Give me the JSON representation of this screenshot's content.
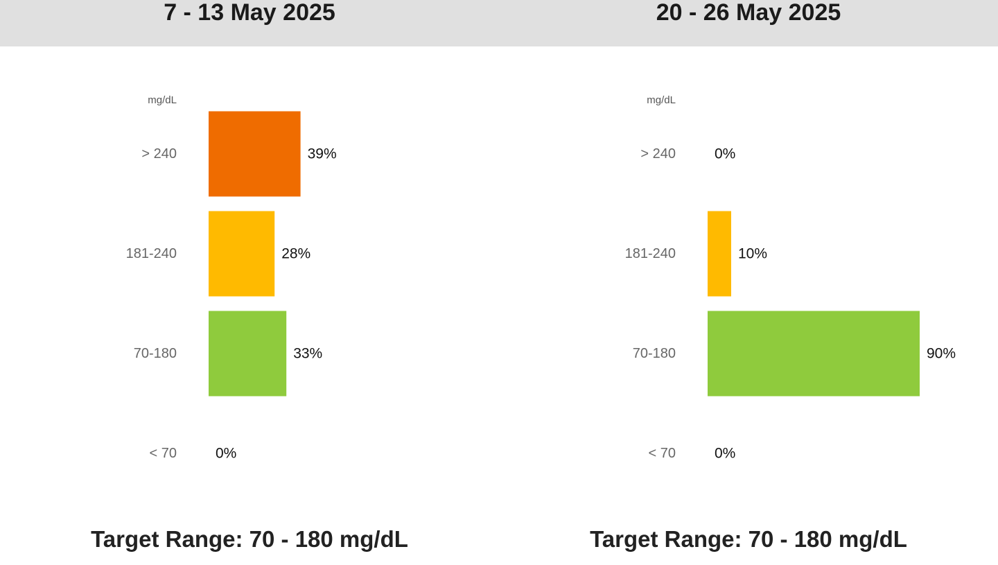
{
  "chart_data": [
    {
      "type": "bar",
      "orientation": "horizontal",
      "title": "7 - 13 May 2025",
      "unit_label": "mg/dL",
      "categories": [
        "> 240",
        "181-240",
        "70-180",
        "< 70"
      ],
      "values": [
        39,
        28,
        33,
        0
      ],
      "value_labels": [
        "39%",
        "28%",
        "33%",
        "0%"
      ],
      "colors": [
        "#ef6c00",
        "#ffba00",
        "#8fcb3d",
        "#d32f2f"
      ],
      "xlim": [
        0,
        100
      ],
      "grid": false,
      "footer": "Target Range: 70 - 180 mg/dL"
    },
    {
      "type": "bar",
      "orientation": "horizontal",
      "title": "20 - 26 May 2025",
      "unit_label": "mg/dL",
      "categories": [
        "> 240",
        "181-240",
        "70-180",
        "< 70"
      ],
      "values": [
        0,
        10,
        90,
        0
      ],
      "value_labels": [
        "0%",
        "10%",
        "90%",
        "0%"
      ],
      "colors": [
        "#ef6c00",
        "#ffba00",
        "#8fcb3d",
        "#d32f2f"
      ],
      "xlim": [
        0,
        100
      ],
      "grid": false,
      "footer": "Target Range: 70 - 180 mg/dL"
    }
  ]
}
